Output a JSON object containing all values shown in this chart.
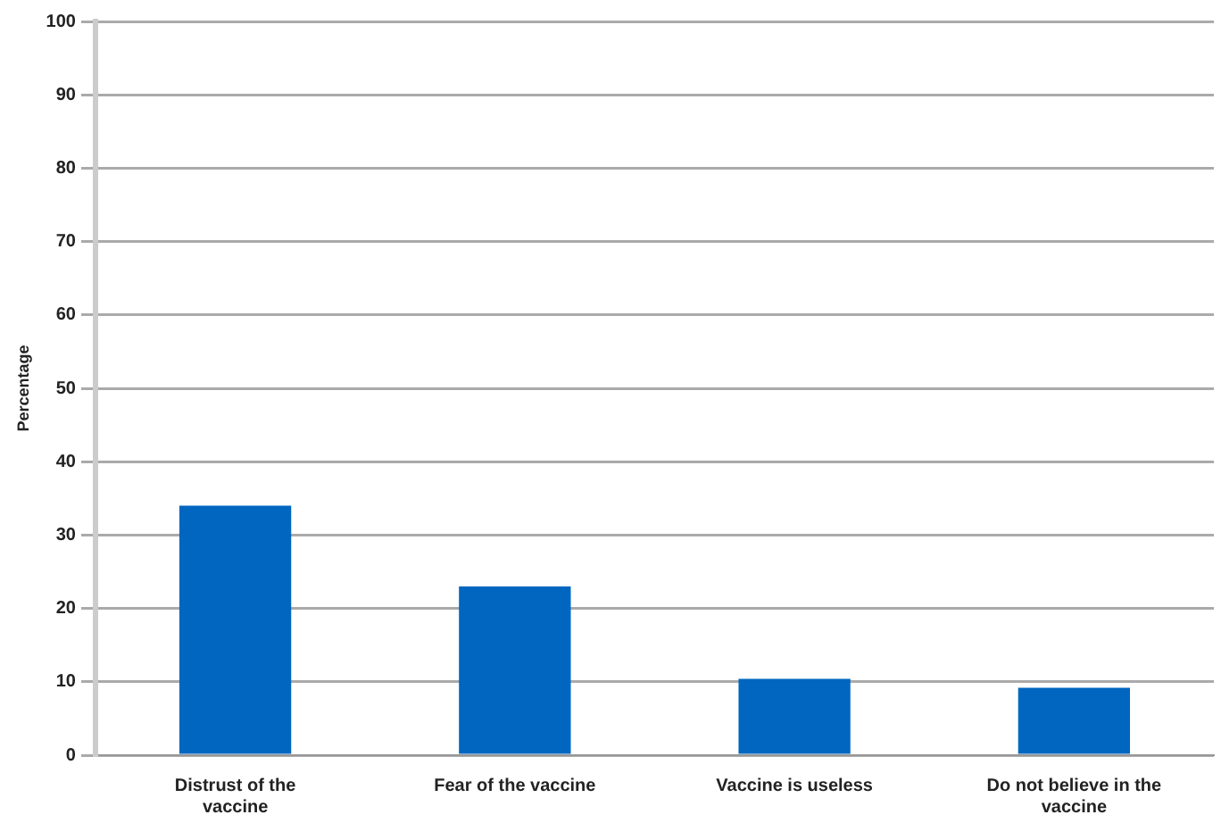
{
  "chart_data": {
    "type": "bar",
    "ylabel": "Percentage",
    "categories": [
      "Distrust of the vaccine",
      "Fear of the vaccine",
      "Vaccine is useless",
      "Do not believe in the vaccine"
    ],
    "values": [
      34,
      23,
      10.4,
      9.2
    ],
    "color": "#0066c0",
    "ylim": [
      0,
      100
    ],
    "yticks": [
      0,
      10,
      20,
      30,
      40,
      50,
      60,
      70,
      80,
      90,
      100
    ],
    "grid": "y",
    "legend": false
  }
}
